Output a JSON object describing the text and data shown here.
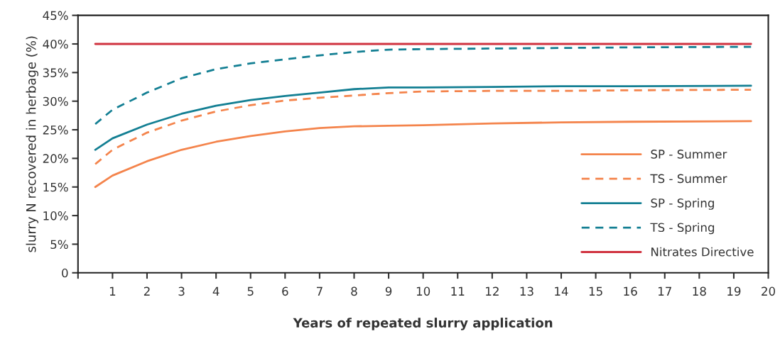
{
  "chart_data": {
    "type": "line",
    "xlabel": "Years of repeated slurry application",
    "ylabel": "slurry N recovered in herbage (%)",
    "xlim": [
      0,
      20
    ],
    "xticks": [
      {
        "value": 0,
        "label": null
      },
      1,
      2,
      3,
      4,
      5,
      6,
      7,
      8,
      9,
      10,
      11,
      12,
      13,
      14,
      15,
      16,
      17,
      18,
      19,
      20
    ],
    "ylim": [
      0,
      45
    ],
    "yticks": [
      0,
      {
        "value": 5,
        "label": "5%"
      },
      {
        "value": 10,
        "label": "10%"
      },
      {
        "value": 15,
        "label": "15%"
      },
      {
        "value": 20,
        "label": "20%"
      },
      {
        "value": 25,
        "label": "25%"
      },
      {
        "value": 30,
        "label": "30%"
      },
      {
        "value": 35,
        "label": "35%"
      },
      {
        "value": 40,
        "label": "40%"
      },
      {
        "value": 45,
        "label": "45%"
      }
    ],
    "grid": false,
    "legend": "bottom right",
    "x": [
      0.5,
      1,
      2,
      3,
      4,
      5,
      6,
      7,
      8,
      9,
      10,
      12,
      14,
      16,
      19.5
    ],
    "series": [
      {
        "name": "SP - Summer",
        "color": "#f4844c",
        "line_style": "solid",
        "values": [
          15,
          17,
          19.5,
          21.5,
          22.9,
          23.9,
          24.7,
          25.3,
          25.6,
          25.7,
          25.8,
          26.1,
          26.3,
          26.4,
          26.5
        ]
      },
      {
        "name": "TS - Summer",
        "color": "#f4844c",
        "line_style": "dashed",
        "values": [
          19,
          21.5,
          24.5,
          26.6,
          28.2,
          29.3,
          30.1,
          30.6,
          31.0,
          31.4,
          31.7,
          31.8,
          31.8,
          31.9,
          32.0
        ]
      },
      {
        "name": "SP - Spring",
        "color": "#137f93",
        "line_style": "solid",
        "values": [
          21.5,
          23.5,
          25.9,
          27.8,
          29.2,
          30.2,
          30.9,
          31.5,
          32.1,
          32.4,
          32.4,
          32.5,
          32.6,
          32.6,
          32.7
        ]
      },
      {
        "name": "TS - Spring",
        "color": "#137f93",
        "line_style": "dashed",
        "values": [
          26,
          28.5,
          31.5,
          34,
          35.6,
          36.6,
          37.3,
          38.0,
          38.6,
          39.0,
          39.1,
          39.2,
          39.3,
          39.4,
          39.5
        ]
      },
      {
        "name": "Nitrates Directive",
        "color": "#d0323f",
        "line_style": "solid",
        "x": [
          0.5,
          19.5
        ],
        "values": [
          40,
          40
        ]
      }
    ]
  }
}
